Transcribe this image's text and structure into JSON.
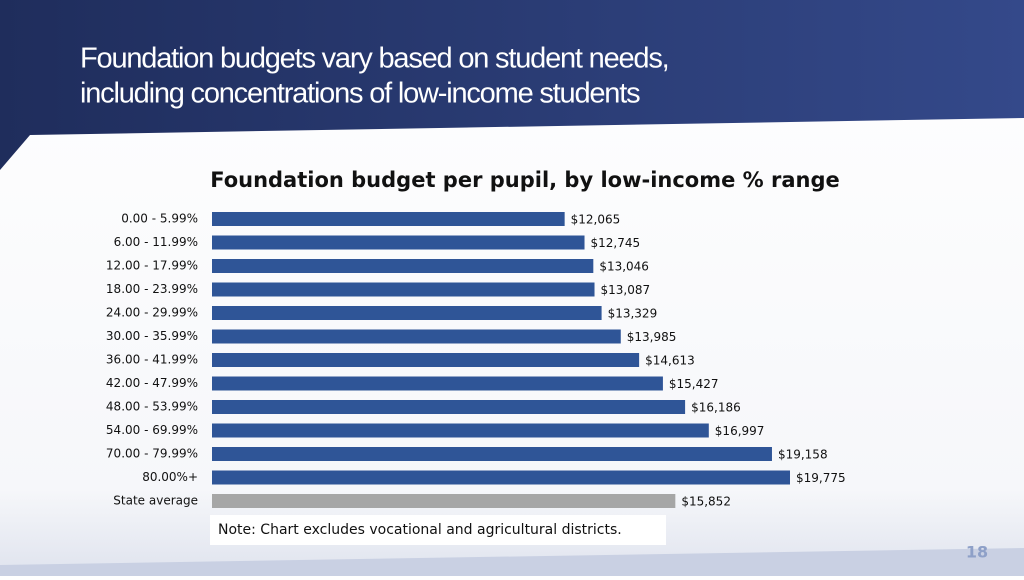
{
  "slide_title": [
    "Foundation budgets vary based on student needs,",
    "including concentrations of low-income students"
  ],
  "chart_data": {
    "type": "barh",
    "title": "Foundation budget per pupil, by low-income % range",
    "categories": [
      "0.00 - 5.99%",
      "6.00 - 11.99%",
      "12.00 - 17.99%",
      "18.00 - 23.99%",
      "24.00 - 29.99%",
      "30.00 - 35.99%",
      "36.00 - 41.99%",
      "42.00 - 47.99%",
      "48.00 - 53.99%",
      "54.00 - 69.99%",
      "70.00 - 79.99%",
      "80.00%+",
      "State average"
    ],
    "values": [
      12065,
      12745,
      13046,
      13087,
      13329,
      13985,
      14613,
      15427,
      16186,
      16997,
      19158,
      19775,
      15852
    ],
    "value_labels": [
      "$12,065",
      "$12,745",
      "$13,046",
      "$13,087",
      "$13,329",
      "$13,985",
      "$14,613",
      "$15,427",
      "$16,186",
      "$16,997",
      "$19,158",
      "$19,775",
      "$15,852"
    ],
    "colors": [
      "#2f5597",
      "#2f5597",
      "#2f5597",
      "#2f5597",
      "#2f5597",
      "#2f5597",
      "#2f5597",
      "#2f5597",
      "#2f5597",
      "#2f5597",
      "#2f5597",
      "#2f5597",
      "#a6a6a6"
    ]
  },
  "note": "Note: Chart excludes vocational and agricultural districts.",
  "page_number": "18"
}
